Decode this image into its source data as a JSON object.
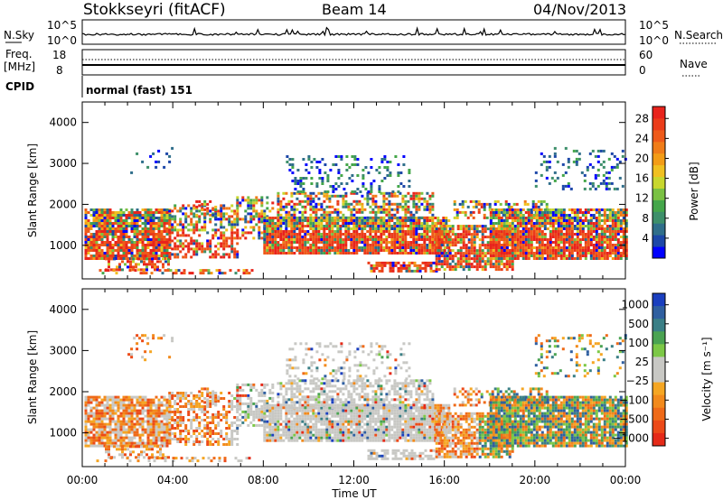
{
  "header": {
    "station": "Stokkseyri (fitACF)",
    "beam": "Beam 14",
    "date": "04/Nov/2013"
  },
  "noise_panel": {
    "left_label": "N.Sky",
    "right_label": "N.Search",
    "left_ticks": [
      "10^5",
      "10^0"
    ],
    "right_ticks": [
      "10^5",
      "10^0"
    ]
  },
  "freq_panel": {
    "left_label_line1": "Freq.",
    "left_label_line2": "[MHz]",
    "right_label": "Nave",
    "left_ticks": [
      "18",
      "8"
    ],
    "right_ticks": [
      "60",
      "0"
    ]
  },
  "cpid_panel": {
    "label": "CPID",
    "value": "normal (fast) 151"
  },
  "chart_data": [
    {
      "type": "heatmap",
      "title": "",
      "ylabel": "Slant Range [km]",
      "xlabel": "",
      "ylim": [
        180,
        4500
      ],
      "yticks": [
        "1000",
        "2000",
        "3000",
        "4000"
      ],
      "colorbar": {
        "label": "Power [dB]",
        "ticks": [
          "4",
          "8",
          "12",
          "16",
          "20",
          "24",
          "28"
        ],
        "colors": [
          "#0000ff",
          "#1c47a8",
          "#2f6e8a",
          "#3d8f6a",
          "#44a64a",
          "#7ac143",
          "#c8d72e",
          "#f0c020",
          "#f39c16",
          "#f07c18",
          "#ee5a1a",
          "#eb3c1a",
          "#e8231c"
        ]
      }
    },
    {
      "type": "heatmap",
      "title": "",
      "ylabel": "Slant Range [km]",
      "xlabel": "Time UT",
      "ylim": [
        180,
        4500
      ],
      "yticks": [
        "1000",
        "2000",
        "3000",
        "4000"
      ],
      "xticks": [
        "00:00",
        "04:00",
        "08:00",
        "12:00",
        "16:00",
        "20:00",
        "00:00"
      ],
      "colorbar": {
        "label": "Velocity [m s⁻¹]",
        "ticks": [
          "1000",
          "500",
          "100",
          "25",
          "−25",
          "−100",
          "−500",
          "−1000"
        ],
        "colors": [
          "#1a3fbf",
          "#2f5fa0",
          "#3a7f86",
          "#4aa352",
          "#7cc846",
          "#c8c8c4",
          "#c8c8c4",
          "#f5a623",
          "#f28a1c",
          "#ef6a18",
          "#ec4a18",
          "#e52a18"
        ]
      }
    }
  ]
}
